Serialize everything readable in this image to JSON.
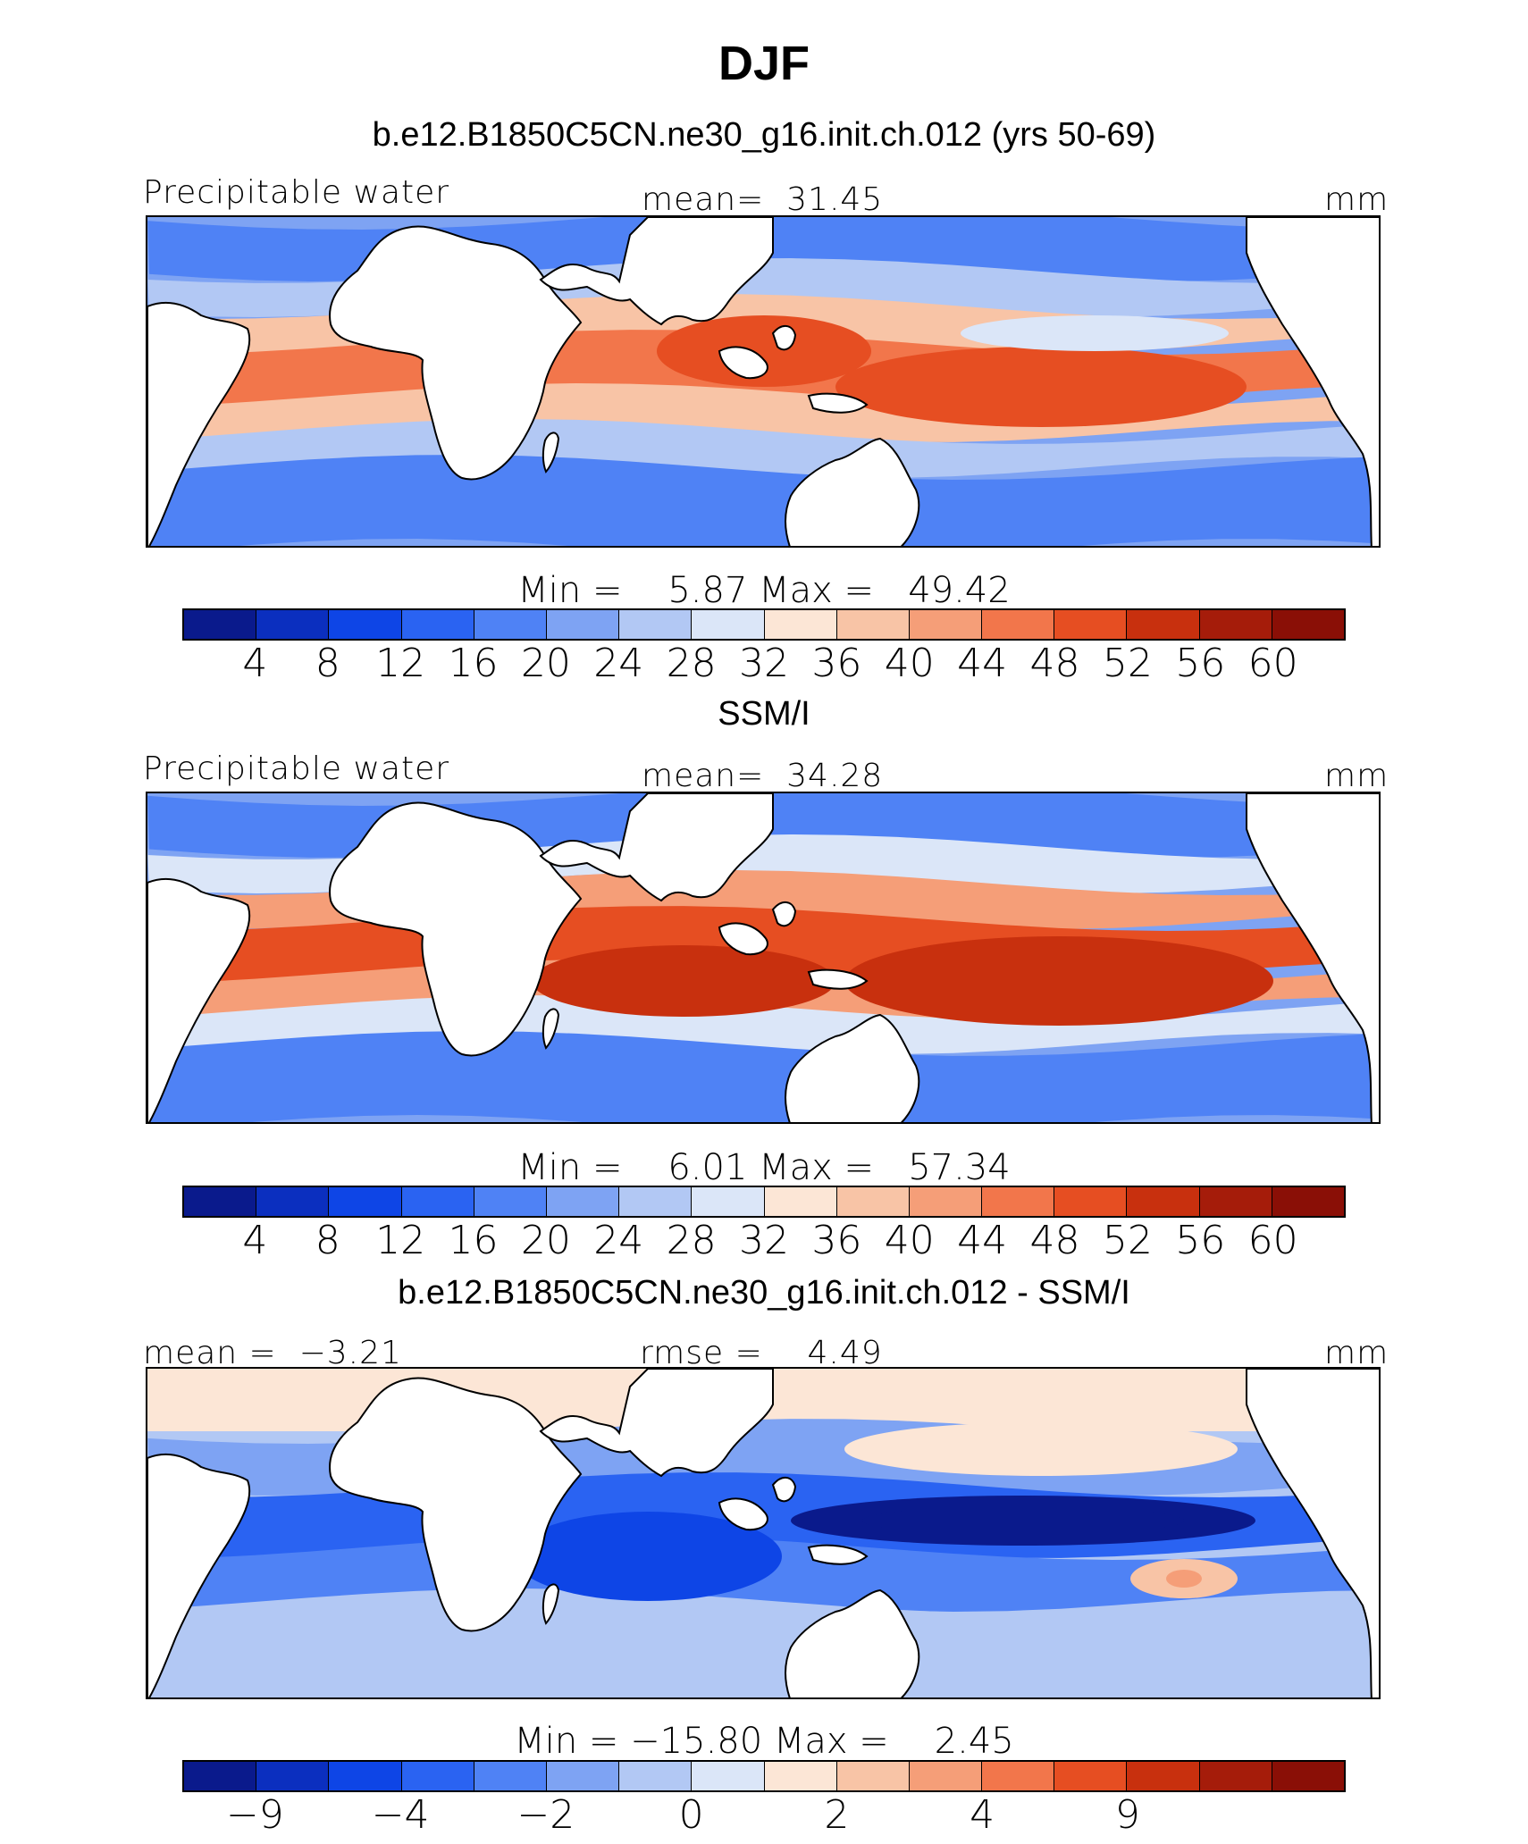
{
  "title": "DJF",
  "colors": [
    "#0a1a8c",
    "#0b2fbf",
    "#0e45e6",
    "#2a63f2",
    "#4f82f5",
    "#7ea3f3",
    "#b2c8f4",
    "#dbe6f8",
    "#fce6d6",
    "#f8c4a6",
    "#f59e78",
    "#f2764b",
    "#e64e22",
    "#c8300e",
    "#a51c0a",
    "#8a0f06"
  ],
  "land_color": "#ffffff",
  "panels": [
    {
      "title": "b.e12.B1850C5CN.ne30_g16.init.ch.012 (yrs 50-69)",
      "left_label": "Precipitable water",
      "center_label": "mean=  31.45",
      "right_label": "mm",
      "minmax": "Min =    5.87 Max =   49.42",
      "ticks": [
        "4",
        "8",
        "12",
        "16",
        "20",
        "24",
        "28",
        "32",
        "36",
        "40",
        "44",
        "48",
        "52",
        "56",
        "60"
      ],
      "stats": {
        "mean": 31.45,
        "min": 5.87,
        "max": 49.42
      }
    },
    {
      "title": "SSM/I",
      "left_label": "Precipitable water",
      "center_label": "mean=  34.28",
      "right_label": "mm",
      "minmax": "Min =    6.01 Max =   57.34",
      "ticks": [
        "4",
        "8",
        "12",
        "16",
        "20",
        "24",
        "28",
        "32",
        "36",
        "40",
        "44",
        "48",
        "52",
        "56",
        "60"
      ],
      "stats": {
        "mean": 34.28,
        "min": 6.01,
        "max": 57.34
      }
    },
    {
      "title": "b.e12.B1850C5CN.ne30_g16.init.ch.012 - SSM/I",
      "left_label": "mean =  −3.21",
      "center_label": "rmse =    4.49",
      "right_label": "mm",
      "minmax": "Min = −15.80 Max =    2.45",
      "ticks": [
        "−9",
        "",
        "−4",
        "",
        "−2",
        "",
        "0",
        "",
        "2",
        "",
        "4",
        "",
        "9",
        "",
        ""
      ],
      "stats": {
        "mean": -3.21,
        "rmse": 4.49,
        "min": -15.8,
        "max": 2.45
      }
    }
  ]
}
